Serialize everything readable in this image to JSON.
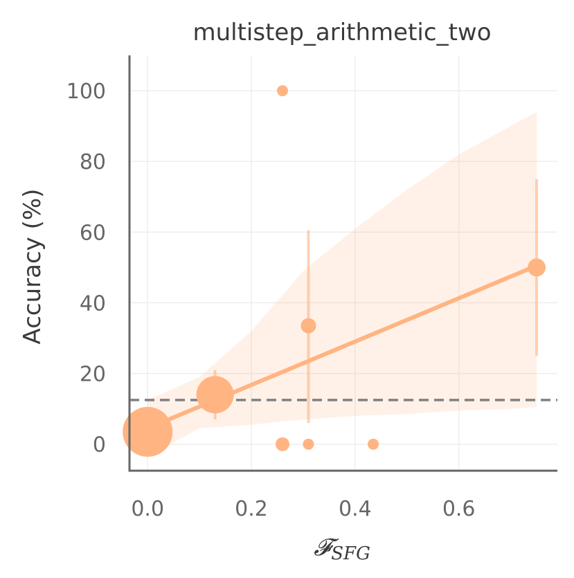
{
  "chart_data": {
    "type": "scatter",
    "title": "multistep_arithmetic_two",
    "ylabel": "Accuracy (%)",
    "xlabel_main": "𝓕",
    "xlabel_sub": "SFG",
    "xlim": [
      -0.035,
      0.79
    ],
    "ylim": [
      -7.5,
      110
    ],
    "xticks": [
      0.0,
      0.2,
      0.4,
      0.6
    ],
    "xtick_labels": [
      "0.0",
      "0.2",
      "0.4",
      "0.6"
    ],
    "yticks": [
      0,
      20,
      40,
      60,
      80,
      100
    ],
    "ytick_labels": [
      "0",
      "20",
      "40",
      "60",
      "80",
      "100"
    ],
    "grid": true,
    "color": "#FFB482",
    "baseline_y": 12.5,
    "points": [
      {
        "x": 0.0,
        "y": 3.5,
        "size": 36,
        "err": null
      },
      {
        "x": 0.13,
        "y": 14,
        "size": 27,
        "err": [
          7,
          21
        ]
      },
      {
        "x": 0.26,
        "y": 100,
        "size": 8,
        "err": null
      },
      {
        "x": 0.26,
        "y": 0,
        "size": 10,
        "err": null
      },
      {
        "x": 0.31,
        "y": 33.5,
        "size": 11,
        "err": [
          6,
          60.5
        ]
      },
      {
        "x": 0.31,
        "y": 0,
        "size": 8,
        "err": null
      },
      {
        "x": 0.435,
        "y": 0,
        "size": 8,
        "err": null
      },
      {
        "x": 0.75,
        "y": 50,
        "size": 13,
        "err": [
          25,
          75
        ]
      }
    ],
    "regression": {
      "x": [
        0.0,
        0.75
      ],
      "y": [
        4.5,
        50.5
      ]
    },
    "confidence_band": {
      "x": [
        0.0,
        0.1,
        0.2,
        0.3,
        0.4,
        0.5,
        0.6,
        0.7,
        0.75
      ],
      "upper": [
        12.5,
        19,
        32,
        49,
        61,
        72,
        82,
        90,
        94
      ],
      "lower": [
        -3.5,
        4.5,
        5.5,
        7,
        8,
        8.5,
        9.5,
        10,
        10.5
      ]
    }
  }
}
